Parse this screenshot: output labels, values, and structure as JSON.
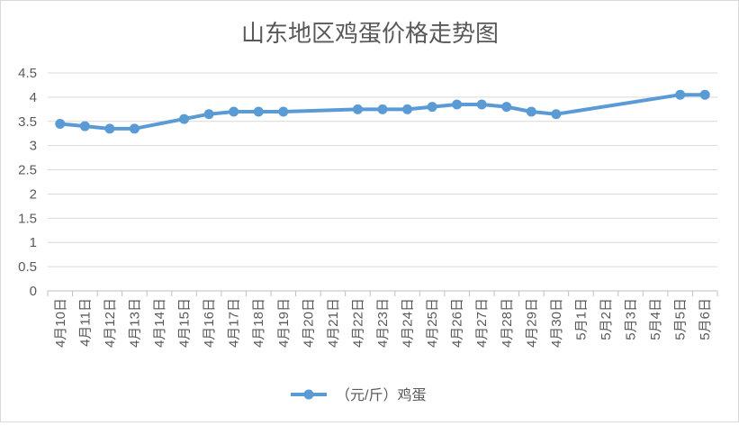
{
  "chart_data": {
    "type": "line",
    "title": "山东地区鸡蛋价格走势图",
    "xlabel": "",
    "ylabel": "",
    "ylim": [
      0,
      4.5
    ],
    "yticks": [
      "0",
      "0.5",
      "1",
      "1.5",
      "2",
      "2.5",
      "3",
      "3.5",
      "4",
      "4.5"
    ],
    "grid": true,
    "legend_position": "bottom",
    "categories": [
      "4月10日",
      "4月11日",
      "4月12日",
      "4月13日",
      "4月14日",
      "4月15日",
      "4月16日",
      "4月17日",
      "4月18日",
      "4月19日",
      "4月20日",
      "4月21日",
      "4月22日",
      "4月23日",
      "4月24日",
      "4月25日",
      "4月26日",
      "4月27日",
      "4月28日",
      "4月29日",
      "4月30日",
      "5月1日",
      "5月2日",
      "5月3日",
      "5月4日",
      "5月5日",
      "5月6日"
    ],
    "series": [
      {
        "name": "（元/斤）鸡蛋",
        "color": "#5b9bd5",
        "values": [
          3.45,
          3.4,
          3.35,
          3.35,
          null,
          3.55,
          3.65,
          3.7,
          3.7,
          3.7,
          null,
          null,
          3.75,
          3.75,
          3.75,
          3.8,
          3.85,
          3.85,
          3.8,
          3.7,
          3.65,
          null,
          null,
          null,
          null,
          4.05,
          4.05
        ]
      }
    ]
  }
}
